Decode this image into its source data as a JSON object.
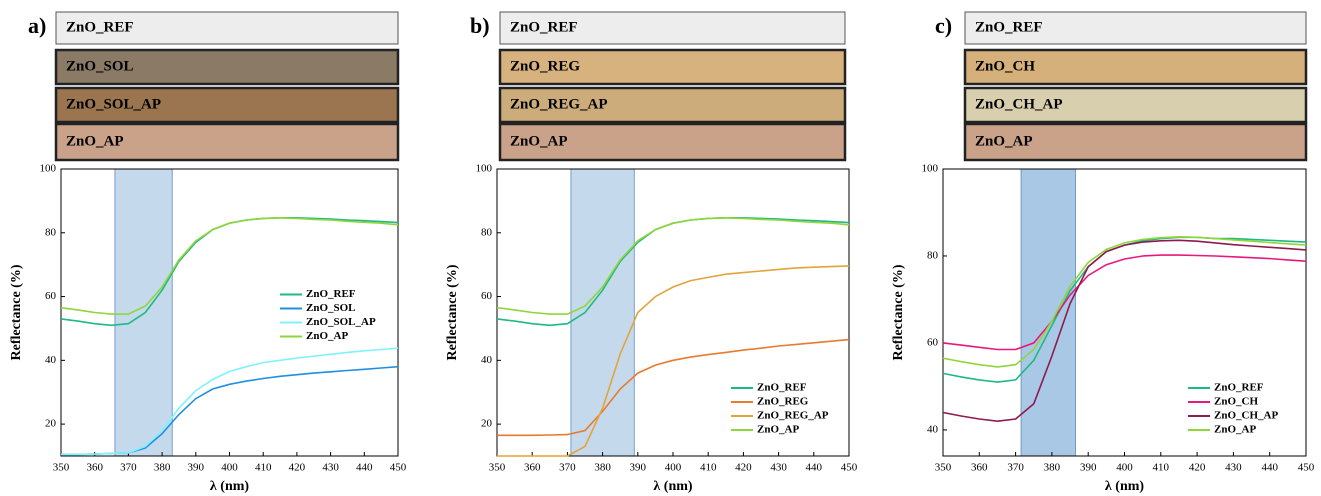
{
  "chart_data": [
    {
      "type": "line",
      "panel_label": "a)",
      "swatches": [
        {
          "label": "ZnO_REF",
          "color": "#ededed"
        },
        {
          "label": "ZnO_SOL",
          "color": "#8a7a66"
        },
        {
          "label": "ZnO_SOL_AP",
          "color": "#9a7550"
        },
        {
          "label": "ZnO_AP",
          "color": "#c9a289"
        }
      ],
      "x_label": "λ (nm)",
      "y_label": "Reflectance (%)",
      "x": [
        350,
        355,
        360,
        365,
        370,
        375,
        380,
        385,
        390,
        395,
        400,
        405,
        410,
        415,
        420,
        425,
        430,
        435,
        440,
        445,
        450
      ],
      "series": [
        {
          "name": "ZnO_REF",
          "color": "#20b887",
          "values": [
            53,
            52.3,
            51.5,
            51,
            51.5,
            55,
            62,
            71,
            77,
            81,
            83,
            84,
            84.5,
            84.7,
            84.7,
            84.5,
            84.3,
            84,
            83.8,
            83.5,
            83.2
          ]
        },
        {
          "name": "ZnO_SOL",
          "color": "#1f8fe0",
          "values": [
            10.5,
            10.5,
            10.6,
            10.8,
            11,
            12.5,
            17,
            23,
            28,
            31,
            32.5,
            33.5,
            34.3,
            35,
            35.5,
            36,
            36.4,
            36.8,
            37.2,
            37.6,
            38
          ]
        },
        {
          "name": "ZnO_SOL_AP",
          "color": "#7ff2ff",
          "values": [
            10.5,
            10.5,
            10.6,
            10.8,
            11,
            13,
            18,
            25,
            30.5,
            34,
            36.5,
            38,
            39.3,
            40,
            40.7,
            41.3,
            41.9,
            42.5,
            43,
            43.4,
            43.8
          ]
        },
        {
          "name": "ZnO_AP",
          "color": "#8fd63a",
          "values": [
            56.5,
            55.8,
            55,
            54.5,
            54.5,
            57,
            63,
            71.5,
            77.5,
            81,
            83,
            84,
            84.5,
            84.7,
            84.5,
            84.2,
            84,
            83.6,
            83.3,
            83,
            82.5
          ]
        }
      ],
      "band": [
        366,
        383
      ],
      "band_color": "#c5d9ec",
      "xlim": [
        350,
        450
      ],
      "xticks": [
        350,
        360,
        370,
        380,
        390,
        400,
        410,
        420,
        430,
        440,
        450
      ],
      "ylim": [
        10,
        100
      ],
      "yticks": [
        20,
        40,
        60,
        80,
        100
      ],
      "legend": "center right"
    },
    {
      "type": "line",
      "panel_label": "b)",
      "swatches": [
        {
          "label": "ZnO_REF",
          "color": "#ededed"
        },
        {
          "label": "ZnO_REG",
          "color": "#d8b27e"
        },
        {
          "label": "ZnO_REG_AP",
          "color": "#ccac7a"
        },
        {
          "label": "ZnO_AP",
          "color": "#c9a289"
        }
      ],
      "x_label": "λ (nm)",
      "y_label": "Reflectance (%)",
      "x": [
        350,
        355,
        360,
        365,
        370,
        375,
        380,
        385,
        390,
        395,
        400,
        405,
        410,
        415,
        420,
        425,
        430,
        435,
        440,
        445,
        450
      ],
      "series": [
        {
          "name": "ZnO_REF",
          "color": "#20b887",
          "values": [
            53,
            52.3,
            51.5,
            51,
            51.5,
            55,
            62,
            71,
            77,
            81,
            83,
            84,
            84.5,
            84.7,
            84.7,
            84.5,
            84.3,
            84,
            83.8,
            83.5,
            83.2
          ]
        },
        {
          "name": "ZnO_REG",
          "color": "#e87a2e",
          "values": [
            16.5,
            16.5,
            16.5,
            16.6,
            16.7,
            18,
            24,
            31,
            36,
            38.5,
            40,
            41,
            41.8,
            42.5,
            43.2,
            43.8,
            44.5,
            45,
            45.5,
            46,
            46.5
          ]
        },
        {
          "name": "ZnO_REG_AP",
          "color": "#e3a33a",
          "values": [
            10,
            10,
            10,
            10,
            10,
            13,
            25,
            42,
            55,
            60,
            63,
            65,
            66,
            67,
            67.5,
            68,
            68.5,
            69,
            69.2,
            69.4,
            69.6
          ]
        },
        {
          "name": "ZnO_AP",
          "color": "#8fd63a",
          "values": [
            56.5,
            55.8,
            55,
            54.5,
            54.5,
            57,
            63,
            71.5,
            77.5,
            81,
            83,
            84,
            84.5,
            84.7,
            84.5,
            84.2,
            84,
            83.6,
            83.3,
            83,
            82.5
          ]
        }
      ],
      "band": [
        371,
        389
      ],
      "band_color": "#c5d9ec",
      "xlim": [
        350,
        450
      ],
      "xticks": [
        350,
        360,
        370,
        380,
        390,
        400,
        410,
        420,
        430,
        440,
        450
      ],
      "ylim": [
        10,
        100
      ],
      "yticks": [
        20,
        40,
        60,
        80,
        100
      ],
      "legend": "lower right"
    },
    {
      "type": "line",
      "panel_label": "c)",
      "swatches": [
        {
          "label": "ZnO_REF",
          "color": "#ededed"
        },
        {
          "label": "ZnO_CH",
          "color": "#d5b07a"
        },
        {
          "label": "ZnO_CH_AP",
          "color": "#d8cfae"
        },
        {
          "label": "ZnO_AP",
          "color": "#c9a289"
        }
      ],
      "x_label": "λ (nm)",
      "y_label": "Reflectance (%)",
      "x": [
        350,
        355,
        360,
        365,
        370,
        375,
        380,
        385,
        390,
        395,
        400,
        405,
        410,
        415,
        420,
        425,
        430,
        435,
        440,
        445,
        450
      ],
      "series": [
        {
          "name": "ZnO_REF",
          "color": "#20b887",
          "values": [
            53,
            52.2,
            51.5,
            51,
            51.5,
            56,
            64,
            72,
            77.5,
            81,
            82.5,
            83.5,
            84,
            84.3,
            84.3,
            84,
            84,
            83.8,
            83.6,
            83.4,
            83.2
          ]
        },
        {
          "name": "ZnO_CH",
          "color": "#e8197d",
          "values": [
            60,
            59.5,
            59,
            58.5,
            58.5,
            60,
            65,
            71,
            75.5,
            78,
            79.3,
            80,
            80.2,
            80.2,
            80.1,
            80,
            79.8,
            79.6,
            79.4,
            79.1,
            78.8
          ]
        },
        {
          "name": "ZnO_CH_AP",
          "color": "#8e1a4e",
          "values": [
            44,
            43.2,
            42.5,
            42,
            42.5,
            46,
            57,
            69,
            77.5,
            81,
            82.5,
            83.2,
            83.5,
            83.6,
            83.4,
            83,
            82.6,
            82.3,
            82,
            81.7,
            81.4
          ]
        },
        {
          "name": "ZnO_AP",
          "color": "#8fd63a",
          "values": [
            56.5,
            55.7,
            55,
            54.5,
            55,
            58.5,
            65,
            73,
            78.5,
            81.5,
            83,
            83.8,
            84.2,
            84.4,
            84.3,
            84,
            83.7,
            83.4,
            83.1,
            82.8,
            82.5
          ]
        }
      ],
      "band": [
        371.5,
        386.5
      ],
      "band_color": "#a9c8e6",
      "xlim": [
        350,
        450
      ],
      "xticks": [
        350,
        360,
        370,
        380,
        390,
        400,
        410,
        420,
        430,
        440,
        450
      ],
      "ylim": [
        34,
        100
      ],
      "yticks": [
        40,
        60,
        80,
        100
      ],
      "legend": "lower right"
    }
  ]
}
